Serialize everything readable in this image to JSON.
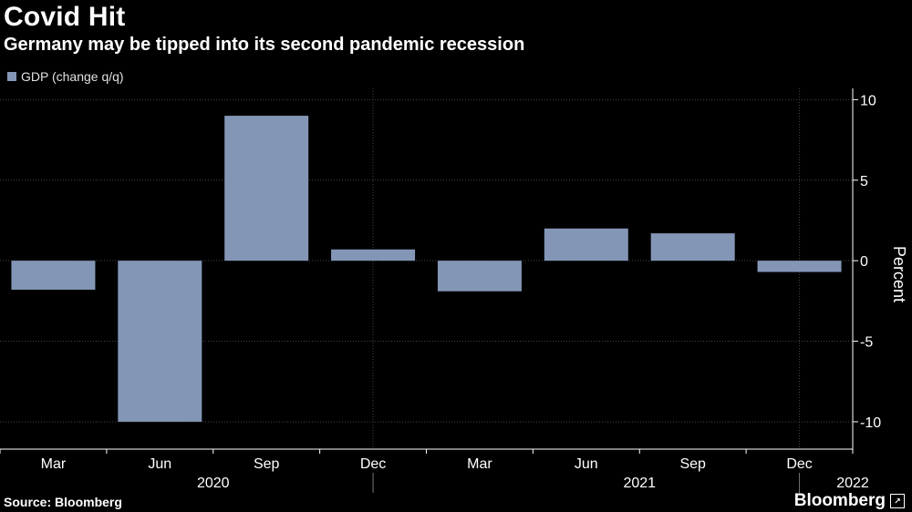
{
  "title": "Covid Hit",
  "subtitle": "Germany may be tipped into its second pandemic recession",
  "source": "Source: Bloomberg",
  "brand": "Bloomberg",
  "brand_icon": "external-link-icon",
  "colors": {
    "bar": "#8396b6",
    "background": "#000000",
    "grid": "#444444",
    "text": "#ffffff"
  },
  "chart_data": {
    "type": "bar",
    "legend": [
      "GDP (change q/q)"
    ],
    "categories": [
      "Mar",
      "Jun",
      "Sep",
      "Dec",
      "Mar",
      "Jun",
      "Sep",
      "Dec"
    ],
    "years": [
      {
        "label": "2020",
        "start": 0,
        "end": 3
      },
      {
        "label": "2021",
        "start": 4,
        "end": 7
      },
      {
        "label": "2022",
        "start": 7.5,
        "end": 7.5
      }
    ],
    "series": [
      {
        "name": "GDP (change q/q)",
        "values": [
          -1.8,
          -10.0,
          9.0,
          0.7,
          -1.9,
          2.0,
          1.7,
          -0.7
        ]
      }
    ],
    "ylabel": "Percent",
    "ylim": [
      -11.7,
      10.7
    ],
    "yticks": [
      10,
      5,
      0,
      -5,
      -10
    ],
    "ytick_labels": [
      "10",
      "5",
      "0",
      "-5",
      "-10"
    ],
    "grid": true,
    "legend_position": "top-left"
  }
}
